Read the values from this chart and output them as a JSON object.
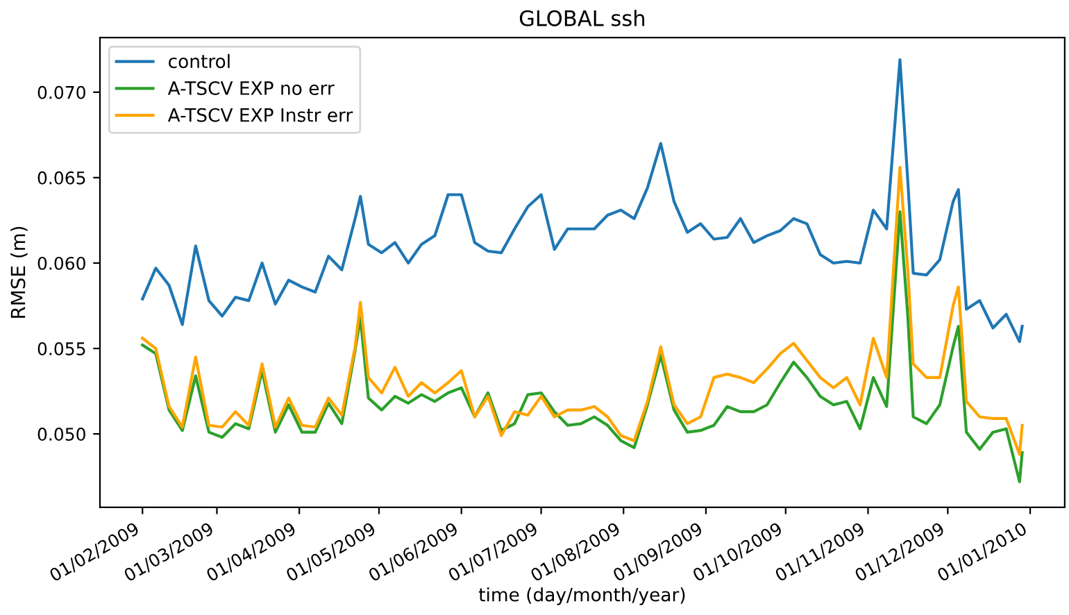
{
  "chart_data": {
    "type": "line",
    "title": "GLOBAL ssh",
    "xlabel": "time (day/month/year)",
    "ylabel": "RMSE (m)",
    "x": [
      "2009-02-01",
      "2009-02-06",
      "2009-02-11",
      "2009-02-16",
      "2009-02-21",
      "2009-02-26",
      "2009-03-03",
      "2009-03-08",
      "2009-03-13",
      "2009-03-18",
      "2009-03-23",
      "2009-03-28",
      "2009-04-02",
      "2009-04-07",
      "2009-04-12",
      "2009-04-17",
      "2009-04-22",
      "2009-04-24",
      "2009-04-27",
      "2009-05-02",
      "2009-05-07",
      "2009-05-12",
      "2009-05-17",
      "2009-05-22",
      "2009-05-27",
      "2009-06-01",
      "2009-06-06",
      "2009-06-11",
      "2009-06-16",
      "2009-06-21",
      "2009-06-26",
      "2009-07-01",
      "2009-07-06",
      "2009-07-11",
      "2009-07-16",
      "2009-07-21",
      "2009-07-26",
      "2009-07-31",
      "2009-08-05",
      "2009-08-10",
      "2009-08-15",
      "2009-08-20",
      "2009-08-25",
      "2009-08-30",
      "2009-09-04",
      "2009-09-09",
      "2009-09-14",
      "2009-09-19",
      "2009-09-24",
      "2009-09-29",
      "2009-10-04",
      "2009-10-09",
      "2009-10-14",
      "2009-10-19",
      "2009-10-24",
      "2009-10-29",
      "2009-11-03",
      "2009-11-08",
      "2009-11-13",
      "2009-11-16",
      "2009-11-18",
      "2009-11-23",
      "2009-11-28",
      "2009-12-03",
      "2009-12-05",
      "2009-12-08",
      "2009-12-13",
      "2009-12-18",
      "2009-12-23",
      "2009-12-28",
      "2009-12-29"
    ],
    "series": [
      {
        "name": "control",
        "color": "#1f77b4",
        "values": [
          0.0579,
          0.0597,
          0.0587,
          0.0564,
          0.061,
          0.0578,
          0.0569,
          0.058,
          0.0578,
          0.06,
          0.0576,
          0.059,
          0.0586,
          0.0583,
          0.0604,
          0.0596,
          0.0626,
          0.0639,
          0.0611,
          0.0606,
          0.0612,
          0.06,
          0.0611,
          0.0616,
          0.064,
          0.064,
          0.0612,
          0.0607,
          0.0606,
          0.062,
          0.0633,
          0.064,
          0.0608,
          0.062,
          0.062,
          0.062,
          0.0628,
          0.0631,
          0.0626,
          0.0644,
          0.067,
          0.0636,
          0.0618,
          0.0623,
          0.0614,
          0.0615,
          0.0626,
          0.0612,
          0.0616,
          0.0619,
          0.0626,
          0.0623,
          0.0605,
          0.06,
          0.0601,
          0.06,
          0.0631,
          0.062,
          0.0719,
          0.0647,
          0.0594,
          0.0593,
          0.0602,
          0.0636,
          0.0643,
          0.0573,
          0.0578,
          0.0562,
          0.057,
          0.0554,
          0.0563
        ]
      },
      {
        "name": "A-TSCV EXP no err",
        "color": "#2ca02c",
        "values": [
          0.0552,
          0.0547,
          0.0514,
          0.0502,
          0.0534,
          0.0501,
          0.0498,
          0.0506,
          0.0503,
          0.0537,
          0.0501,
          0.0517,
          0.0501,
          0.0501,
          0.0518,
          0.0506,
          0.0549,
          0.0568,
          0.0521,
          0.0514,
          0.0522,
          0.0518,
          0.0523,
          0.0519,
          0.0524,
          0.0527,
          0.051,
          0.0524,
          0.0502,
          0.0506,
          0.0523,
          0.0524,
          0.0513,
          0.0505,
          0.0506,
          0.051,
          0.0505,
          0.0496,
          0.0492,
          0.0517,
          0.0546,
          0.0514,
          0.0501,
          0.0502,
          0.0505,
          0.0516,
          0.0513,
          0.0513,
          0.0517,
          0.053,
          0.0542,
          0.0533,
          0.0522,
          0.0517,
          0.0519,
          0.0503,
          0.0533,
          0.0516,
          0.063,
          0.0568,
          0.051,
          0.0506,
          0.0517,
          0.0551,
          0.0563,
          0.0501,
          0.0491,
          0.0501,
          0.0503,
          0.0472,
          0.0489
        ]
      },
      {
        "name": "A-TSCV EXP Instr err",
        "color": "#ffa500",
        "values": [
          0.0556,
          0.055,
          0.0516,
          0.0504,
          0.0545,
          0.0505,
          0.0504,
          0.0513,
          0.0505,
          0.0541,
          0.0504,
          0.0521,
          0.0505,
          0.0504,
          0.0521,
          0.0511,
          0.0551,
          0.0577,
          0.0533,
          0.0524,
          0.0539,
          0.0522,
          0.053,
          0.0524,
          0.053,
          0.0537,
          0.051,
          0.0522,
          0.0499,
          0.0513,
          0.0511,
          0.0522,
          0.051,
          0.0514,
          0.0514,
          0.0516,
          0.051,
          0.0499,
          0.0496,
          0.0519,
          0.0551,
          0.0517,
          0.0506,
          0.051,
          0.0533,
          0.0535,
          0.0533,
          0.053,
          0.0538,
          0.0547,
          0.0553,
          0.0543,
          0.0533,
          0.0527,
          0.0533,
          0.0517,
          0.0556,
          0.0533,
          0.0656,
          0.0595,
          0.0541,
          0.0533,
          0.0533,
          0.0575,
          0.0586,
          0.0519,
          0.051,
          0.0509,
          0.0509,
          0.0488,
          0.0505
        ]
      }
    ],
    "xlim": [
      "2009-01-16",
      "2010-01-14"
    ],
    "xticks": [
      {
        "value": "2009-02-01",
        "label": "01/02/2009"
      },
      {
        "value": "2009-03-01",
        "label": "01/03/2009"
      },
      {
        "value": "2009-04-01",
        "label": "01/04/2009"
      },
      {
        "value": "2009-05-01",
        "label": "01/05/2009"
      },
      {
        "value": "2009-06-01",
        "label": "01/06/2009"
      },
      {
        "value": "2009-07-01",
        "label": "01/07/2009"
      },
      {
        "value": "2009-08-01",
        "label": "01/08/2009"
      },
      {
        "value": "2009-09-01",
        "label": "01/09/2009"
      },
      {
        "value": "2009-10-01",
        "label": "01/10/2009"
      },
      {
        "value": "2009-11-01",
        "label": "01/11/2009"
      },
      {
        "value": "2009-12-01",
        "label": "01/12/2009"
      },
      {
        "value": "2010-01-01",
        "label": "01/01/2010"
      }
    ],
    "ylim": [
      0.0457,
      0.0732
    ],
    "yticks": [
      {
        "value": 0.05,
        "label": "0.050"
      },
      {
        "value": 0.055,
        "label": "0.055"
      },
      {
        "value": 0.06,
        "label": "0.060"
      },
      {
        "value": 0.065,
        "label": "0.065"
      },
      {
        "value": 0.07,
        "label": "0.070"
      }
    ],
    "grid": false,
    "legend": "top left",
    "marker": "none",
    "line_style": "solid"
  }
}
